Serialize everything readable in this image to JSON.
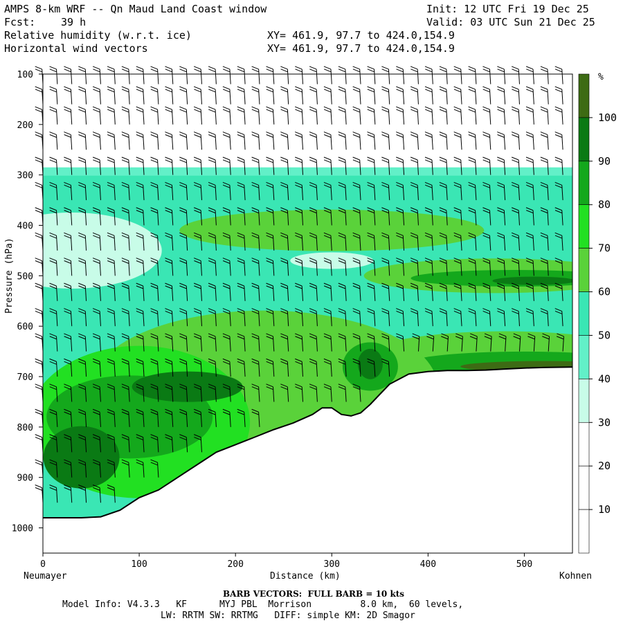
{
  "header": {
    "title": "AMPS 8-km WRF -- Qn Maud Land Coast window",
    "init": "Init: 12 UTC Fri 19 Dec 25",
    "fcst_label": "Fcst:",
    "fcst_value": "39 h",
    "valid": "Valid: 03 UTC Sun 21 Dec 25",
    "field1": "Relative humidity (w.r.t. ice)",
    "field2": "Horizontal wind vectors",
    "xy1": "XY= 461.9, 97.7 to 424.0,154.9",
    "xy2": "XY= 461.9, 97.7 to 424.0,154.9"
  },
  "axes": {
    "ylabel": "Pressure (hPa)",
    "xlabel": "Distance (km)",
    "left_station": "Neumayer",
    "right_station": "Kohnen",
    "yticks": [
      "100",
      "200",
      "300",
      "400",
      "500",
      "600",
      "700",
      "800",
      "900",
      "1000"
    ],
    "xticks": [
      "0",
      "100",
      "200",
      "300",
      "400",
      "500"
    ]
  },
  "colorbar": {
    "unit": "%",
    "labels": [
      "100",
      "90",
      "80",
      "70",
      "60",
      "50",
      "40",
      "30",
      "20",
      "10"
    ],
    "colors": {
      "c100": "#3d6b14",
      "c90": "#0a7a14",
      "c80": "#14a81c",
      "c70": "#22e022",
      "c60": "#5ad23a",
      "c50": "#3ae6b4",
      "c40": "#62f0c8",
      "c30": "#c8fce8",
      "c0": "#ffffff"
    }
  },
  "footer": {
    "barb": "BARB VECTORS:  FULL BARB = 10 kts",
    "model1": "Model Info: V4.3.3   KF      MYJ PBL  Morrison         8.0 km,  60 levels,",
    "model2": "LW: RRTM SW: RRTMG   DIFF: simple KM: 2D Smagor"
  },
  "chart_data": {
    "type": "heatmap",
    "title": "Relative humidity (w.r.t. ice) and horizontal wind vectors, cross-section Neumayer to Kohnen",
    "xlabel": "Distance (km)",
    "ylabel": "Pressure (hPa)",
    "xlim": [
      0,
      550
    ],
    "ylim": [
      1050,
      100
    ],
    "colorbar_range": [
      0,
      110
    ],
    "colorbar_levels": [
      10,
      20,
      30,
      40,
      50,
      60,
      70,
      80,
      90,
      100
    ],
    "terrain_km": [
      0,
      20,
      40,
      60,
      80,
      100,
      120,
      140,
      160,
      180,
      200,
      220,
      240,
      260,
      280,
      290,
      300,
      310,
      320,
      330,
      340,
      350,
      360,
      380,
      400,
      420,
      440,
      460,
      480,
      500,
      520,
      550
    ],
    "terrain_hpa": [
      980,
      980,
      980,
      978,
      965,
      940,
      925,
      900,
      875,
      850,
      835,
      820,
      805,
      792,
      775,
      762,
      762,
      775,
      778,
      772,
      755,
      735,
      715,
      695,
      690,
      688,
      688,
      687,
      685,
      683,
      682,
      681
    ],
    "rh_top_hpa": 285,
    "barb_columns_km": [
      0,
      15,
      30,
      45,
      60,
      75,
      90,
      105,
      120,
      135,
      150,
      165,
      180,
      195,
      210,
      225,
      240,
      255,
      270,
      285,
      300,
      315,
      330,
      345,
      360,
      375,
      390,
      405,
      420,
      435,
      450,
      465,
      480,
      495,
      510,
      525,
      540
    ],
    "barb_levels_hpa": [
      120,
      160,
      200,
      250,
      300,
      350,
      400,
      450,
      500,
      550,
      600,
      650,
      700,
      750,
      800,
      850,
      900,
      950
    ]
  }
}
